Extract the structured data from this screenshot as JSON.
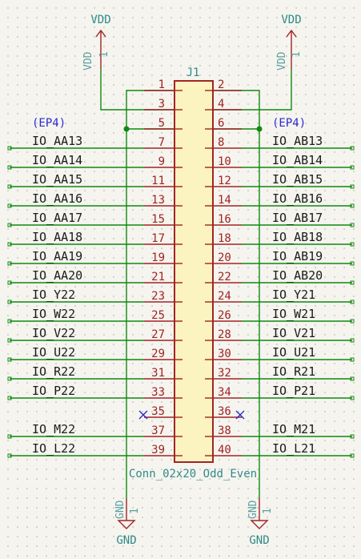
{
  "schematic": {
    "refdes": "J1",
    "value": "Conn_02x20_Odd_Even",
    "power": {
      "vdd": "VDD",
      "gnd": "GND",
      "pin": "1"
    },
    "hier_labels": {
      "left": "(EP4)",
      "right": "(EP4)"
    },
    "pins": [
      {
        "left": "1",
        "right": "2"
      },
      {
        "left": "3",
        "right": "4"
      },
      {
        "left": "5",
        "right": "6"
      },
      {
        "left": "7",
        "right": "8"
      },
      {
        "left": "9",
        "right": "10"
      },
      {
        "left": "11",
        "right": "12"
      },
      {
        "left": "13",
        "right": "14"
      },
      {
        "left": "15",
        "right": "16"
      },
      {
        "left": "17",
        "right": "18"
      },
      {
        "left": "19",
        "right": "20"
      },
      {
        "left": "21",
        "right": "22"
      },
      {
        "left": "23",
        "right": "24"
      },
      {
        "left": "25",
        "right": "26"
      },
      {
        "left": "27",
        "right": "28"
      },
      {
        "left": "29",
        "right": "30"
      },
      {
        "left": "31",
        "right": "32"
      },
      {
        "left": "33",
        "right": "34"
      },
      {
        "left": "35",
        "right": "36"
      },
      {
        "left": "37",
        "right": "38"
      },
      {
        "left": "39",
        "right": "40"
      }
    ],
    "nets": [
      {
        "left": "",
        "right": ""
      },
      {
        "left": "",
        "right": ""
      },
      {
        "left": "",
        "right": ""
      },
      {
        "left": "IO_AA13",
        "right": "IO_AB13"
      },
      {
        "left": "IO_AA14",
        "right": "IO_AB14"
      },
      {
        "left": "IO_AA15",
        "right": "IO_AB15"
      },
      {
        "left": "IO_AA16",
        "right": "IO_AB16"
      },
      {
        "left": "IO_AA17",
        "right": "IO_AB17"
      },
      {
        "left": "IO_AA18",
        "right": "IO_AB18"
      },
      {
        "left": "IO_AA19",
        "right": "IO_AB19"
      },
      {
        "left": "IO_AA20",
        "right": "IO_AB20"
      },
      {
        "left": "IO_Y22",
        "right": "IO_Y21"
      },
      {
        "left": "IO_W22",
        "right": "IO_W21"
      },
      {
        "left": "IO_V22",
        "right": "IO_V21"
      },
      {
        "left": "IO_U22",
        "right": "IO_U21"
      },
      {
        "left": "IO_R22",
        "right": "IO_R21"
      },
      {
        "left": "IO_P22",
        "right": "IO_P21"
      },
      {
        "left": "",
        "right": ""
      },
      {
        "left": "IO_M22",
        "right": "IO_M21"
      },
      {
        "left": "IO_L22",
        "right": "IO_L21"
      }
    ]
  }
}
